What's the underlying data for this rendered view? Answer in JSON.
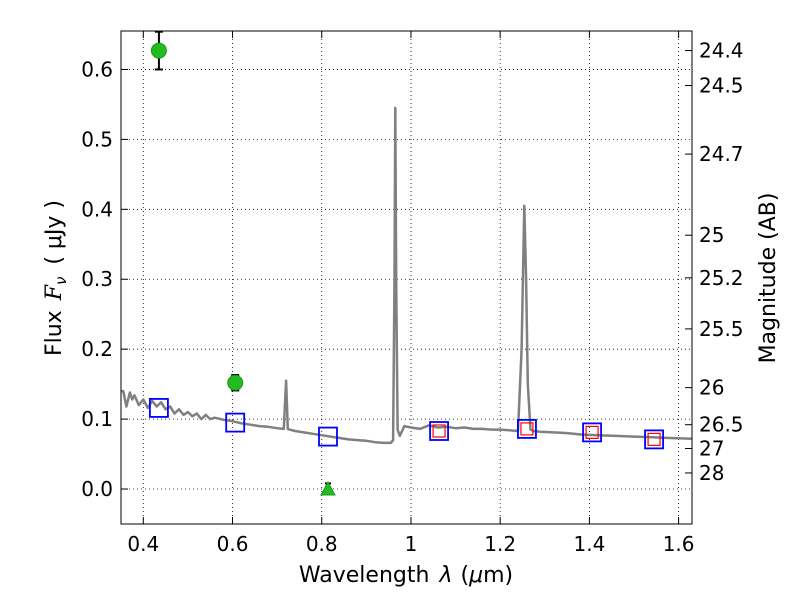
{
  "chart_data": {
    "type": "scatter",
    "xlabel_text": "Wavelength",
    "xlabel_symbol": "λ",
    "xlabel_unit_open": "(",
    "xlabel_unit_mu": "μ",
    "xlabel_unit_rest": "m)",
    "ylabel_text": "Flux",
    "ylabel_symbol": "F",
    "ylabel_sub": "ν",
    "ylabel_unit": "( μJy )",
    "y2label": "Magnitude (AB)",
    "xlim": [
      0.35,
      1.63
    ],
    "ylim": [
      -0.05,
      0.655
    ],
    "xticks": [
      0.4,
      0.6,
      0.8,
      1.0,
      1.2,
      1.4,
      1.6
    ],
    "xtick_labels": [
      "0.4",
      "0.6",
      "0.8",
      "1",
      "1.2",
      "1.4",
      "1.6"
    ],
    "yticks": [
      0.0,
      0.1,
      0.2,
      0.3,
      0.4,
      0.5,
      0.6
    ],
    "ytick_labels": [
      "0.0",
      "0.1",
      "0.2",
      "0.3",
      "0.4",
      "0.5",
      "0.6"
    ],
    "y2ticks": [
      {
        "flux": 0.627,
        "label": "24.4"
      },
      {
        "flux": 0.577,
        "label": "24.5"
      },
      {
        "flux": 0.479,
        "label": "24.7"
      },
      {
        "flux": 0.363,
        "label": "25"
      },
      {
        "flux": 0.302,
        "label": "25.2"
      },
      {
        "flux": 0.229,
        "label": "25.5"
      },
      {
        "flux": 0.145,
        "label": "26"
      },
      {
        "flux": 0.092,
        "label": "26.5"
      },
      {
        "flux": 0.058,
        "label": "27"
      },
      {
        "flux": 0.023,
        "label": "28"
      }
    ],
    "grid": true,
    "spectrum": {
      "color": "#808080",
      "x": [
        0.35,
        0.355,
        0.362,
        0.37,
        0.375,
        0.38,
        0.39,
        0.4,
        0.41,
        0.42,
        0.43,
        0.44,
        0.45,
        0.46,
        0.47,
        0.48,
        0.49,
        0.5,
        0.51,
        0.52,
        0.53,
        0.54,
        0.55,
        0.56,
        0.58,
        0.6,
        0.62,
        0.64,
        0.66,
        0.68,
        0.7,
        0.715,
        0.72,
        0.724,
        0.728,
        0.74,
        0.76,
        0.78,
        0.8,
        0.82,
        0.84,
        0.86,
        0.88,
        0.9,
        0.92,
        0.94,
        0.955,
        0.96,
        0.963,
        0.965,
        0.967,
        0.97,
        0.975,
        0.985,
        1.0,
        1.02,
        1.04,
        1.06,
        1.08,
        1.1,
        1.12,
        1.14,
        1.16,
        1.18,
        1.2,
        1.22,
        1.24,
        1.248,
        1.254,
        1.258,
        1.262,
        1.268,
        1.275,
        1.29,
        1.32,
        1.35,
        1.38,
        1.42,
        1.46,
        1.5,
        1.54,
        1.58,
        1.63
      ],
      "y": [
        0.14,
        0.14,
        0.118,
        0.138,
        0.128,
        0.134,
        0.12,
        0.128,
        0.116,
        0.126,
        0.118,
        0.124,
        0.114,
        0.118,
        0.108,
        0.114,
        0.106,
        0.11,
        0.104,
        0.108,
        0.1,
        0.106,
        0.1,
        0.102,
        0.099,
        0.097,
        0.094,
        0.092,
        0.09,
        0.089,
        0.087,
        0.086,
        0.155,
        0.086,
        0.085,
        0.083,
        0.081,
        0.079,
        0.077,
        0.075,
        0.073,
        0.071,
        0.07,
        0.069,
        0.067,
        0.066,
        0.066,
        0.07,
        0.3,
        0.545,
        0.3,
        0.085,
        0.076,
        0.09,
        0.088,
        0.086,
        0.091,
        0.088,
        0.089,
        0.087,
        0.088,
        0.086,
        0.086,
        0.085,
        0.085,
        0.084,
        0.083,
        0.2,
        0.405,
        0.3,
        0.15,
        0.085,
        0.083,
        0.082,
        0.081,
        0.08,
        0.078,
        0.077,
        0.076,
        0.075,
        0.074,
        0.073,
        0.072
      ]
    },
    "measured": {
      "color": "#22bb22",
      "points": [
        {
          "x": 0.435,
          "y": 0.627,
          "err": 0.027
        },
        {
          "x": 0.606,
          "y": 0.152,
          "err": 0.011
        }
      ]
    },
    "upper_limit": {
      "color": "#22bb22",
      "points": [
        {
          "x": 0.814,
          "y": 0.0,
          "err": 0.008
        }
      ]
    },
    "model_blue": {
      "color": "#0000ff",
      "points": [
        {
          "x": 0.435,
          "y": 0.116
        },
        {
          "x": 0.606,
          "y": 0.095
        },
        {
          "x": 0.814,
          "y": 0.075
        },
        {
          "x": 1.063,
          "y": 0.083
        },
        {
          "x": 1.26,
          "y": 0.086
        },
        {
          "x": 1.406,
          "y": 0.081
        },
        {
          "x": 1.545,
          "y": 0.071
        }
      ]
    },
    "model_red": {
      "color": "#ff0000",
      "points": [
        {
          "x": 1.063,
          "y": 0.083
        },
        {
          "x": 1.26,
          "y": 0.086
        },
        {
          "x": 1.406,
          "y": 0.081
        },
        {
          "x": 1.545,
          "y": 0.071
        }
      ]
    }
  }
}
